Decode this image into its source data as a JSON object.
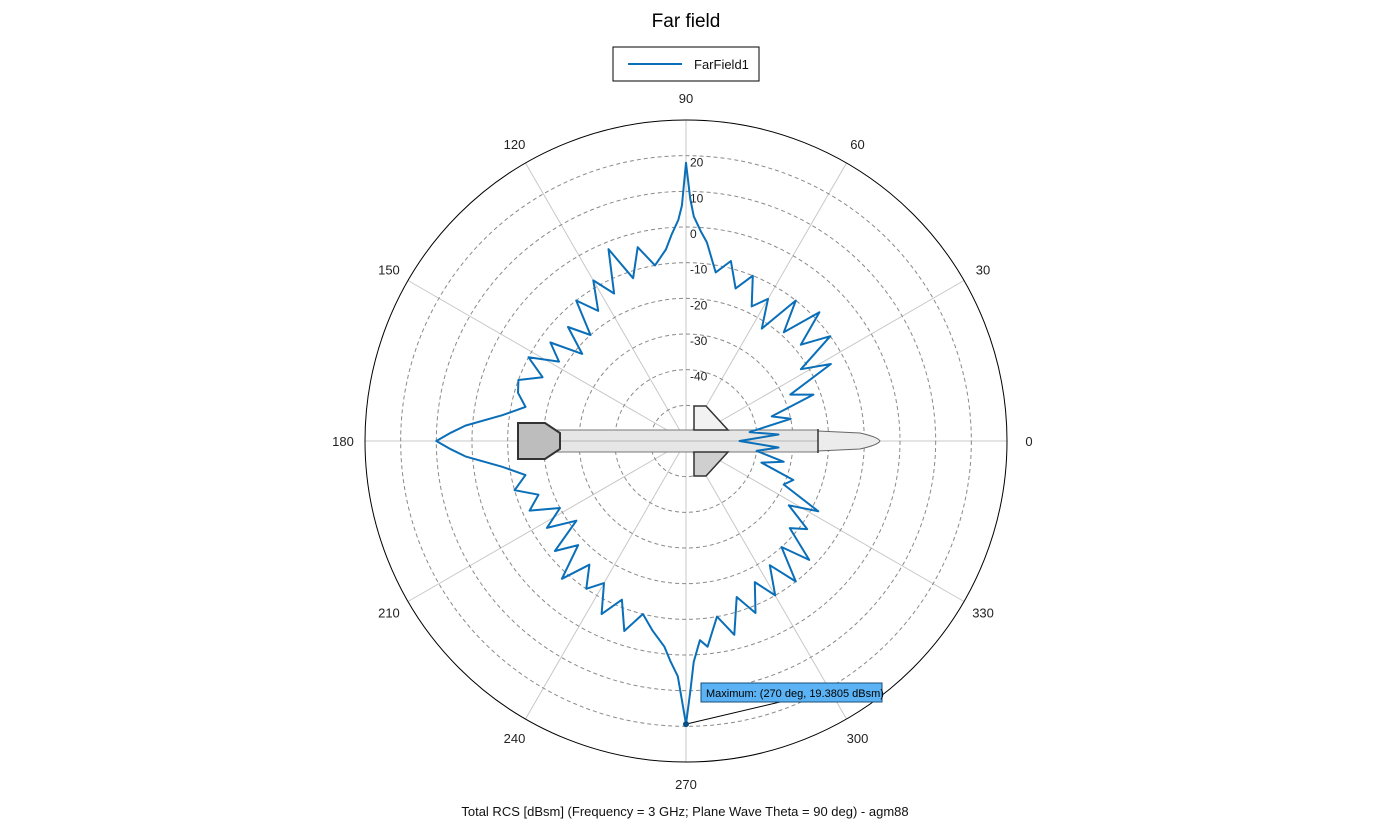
{
  "title": "Far field",
  "legend": {
    "entries": [
      "FarField1"
    ],
    "placement": "top-center"
  },
  "footer": "Total RCS [dBsm] (Frequency = 3 GHz; Plane Wave Theta = 90 deg) - agm88",
  "marker": {
    "text": "Maximum: (270 deg, 19.3805 dBsm)",
    "angle_deg": 270,
    "value_dbsm": 19.3805
  },
  "colors": {
    "series": "#0a6fb8",
    "marker_fill": "#5bb3f5",
    "grid": "#c8c8c8",
    "ring_dash": "#8a8a8a"
  },
  "chart_data": {
    "type": "line",
    "coordinate_system": "polar",
    "title": "Far field",
    "angular_axis": {
      "unit": "deg",
      "zero_direction": "east",
      "direction": "counterclockwise",
      "tick_labels": [
        "0",
        "30",
        "60",
        "90",
        "120",
        "150",
        "180",
        "210",
        "240",
        "270",
        "300",
        "330"
      ]
    },
    "radial_axis": {
      "unit": "dBsm",
      "range": [
        -60,
        30
      ],
      "tick_labels": [
        "-40",
        "-30",
        "-20",
        "-10",
        "0",
        "10",
        "20"
      ]
    },
    "grid": true,
    "series": [
      {
        "name": "FarField1",
        "color": "#0a6fb8",
        "angle_deg": [
          0,
          4,
          8,
          12,
          16,
          20,
          24,
          28,
          32,
          36,
          40,
          44,
          48,
          52,
          56,
          60,
          64,
          68,
          72,
          76,
          80,
          84,
          86,
          88,
          89,
          90,
          91,
          92,
          94,
          96,
          100,
          104,
          108,
          112,
          116,
          120,
          124,
          128,
          132,
          136,
          140,
          144,
          148,
          152,
          156,
          160,
          164,
          168,
          172,
          176,
          178,
          180,
          182,
          184,
          188,
          192,
          196,
          200,
          204,
          208,
          212,
          216,
          220,
          224,
          228,
          232,
          236,
          240,
          244,
          248,
          252,
          256,
          260,
          264,
          266,
          268,
          269,
          270,
          271,
          272,
          274,
          276,
          280,
          284,
          288,
          292,
          296,
          300,
          304,
          308,
          312,
          316,
          320,
          324,
          328,
          332,
          336,
          340,
          344,
          348,
          352,
          356,
          360
        ],
        "values_dbsm": [
          -45,
          -34,
          -42,
          -30,
          -35,
          -22,
          -28,
          -14,
          -22,
          -10,
          -18,
          -8,
          -19,
          -10,
          -22,
          -14,
          -18,
          -10,
          -15,
          -8,
          -12,
          -4,
          -1,
          3,
          8,
          18,
          6,
          2,
          -2,
          -6,
          -10,
          -4,
          -12,
          -2,
          -14,
          -8,
          -16,
          -10,
          -20,
          -14,
          -22,
          -13,
          -18,
          -10,
          -16,
          -10,
          -11,
          -14,
          -8,
          2,
          6,
          10,
          6,
          2,
          -8,
          -14,
          -10,
          -16,
          -12,
          -20,
          -14,
          -22,
          -12,
          -18,
          -8,
          -16,
          -10,
          -14,
          -6,
          -12,
          -4,
          -10,
          -6,
          -2,
          2,
          6,
          12,
          19.38,
          10,
          2,
          -4,
          -2,
          -10,
          -4,
          -14,
          -8,
          -16,
          -10,
          -18,
          -10,
          -20,
          -12,
          -22,
          -18,
          -26,
          -18,
          -30,
          -28,
          -38,
          -32,
          -40,
          -34,
          -45
        ]
      }
    ]
  }
}
